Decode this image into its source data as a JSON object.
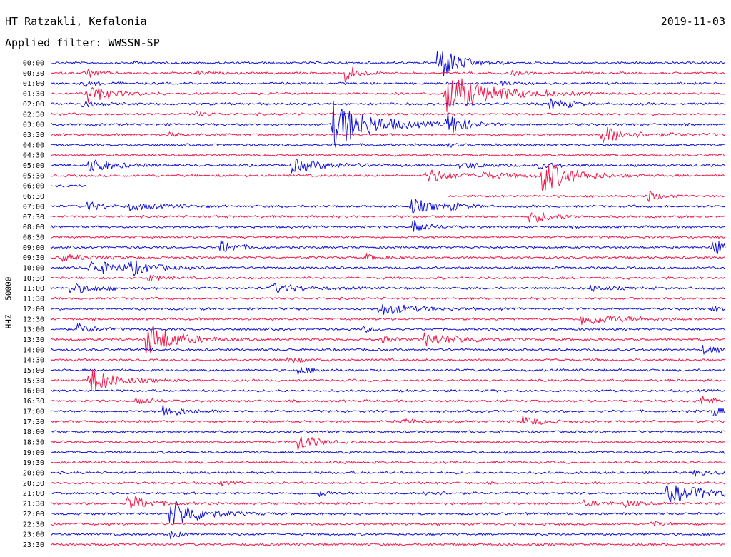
{
  "header": {
    "station": "HT Ratzakli, Kefalonia",
    "date": "2019-11-03",
    "filter": "Applied filter: WWSSN-SP"
  },
  "colors": {
    "line_a": "#1010d8",
    "line_b": "#f0184a"
  },
  "chart_data": {
    "type": "line",
    "title": "HT Ratzakli, Kefalonia",
    "ylabel": "HHZ - 50000",
    "xlabel": "",
    "grid": false,
    "legend": "none",
    "tick_labels": [
      "00:00",
      "00:30",
      "01:00",
      "01:30",
      "02:00",
      "02:30",
      "03:00",
      "03:30",
      "04:00",
      "04:30",
      "05:00",
      "05:30",
      "06:00",
      "06:30",
      "07:00",
      "07:30",
      "08:00",
      "08:30",
      "09:00",
      "09:30",
      "10:00",
      "10:30",
      "11:00",
      "11:30",
      "12:00",
      "12:30",
      "13:00",
      "13:30",
      "14:00",
      "14:30",
      "15:00",
      "15:30",
      "16:00",
      "16:30",
      "17:00",
      "17:30",
      "18:00",
      "18:30",
      "19:00",
      "19:30",
      "20:00",
      "20:30",
      "21:00",
      "21:30",
      "22:00",
      "22:30",
      "23:00",
      "23:30"
    ],
    "trace_span_min": 30,
    "base_noise": 1.4,
    "partial_traces": [
      {
        "row": 12,
        "start_min": 0,
        "end_min": 1.6
      },
      {
        "row": 13,
        "start_min": 17.7,
        "end_min": 30
      }
    ],
    "events": [
      {
        "row": 0,
        "t_min": 3.6,
        "amp": 1.5,
        "dur_min": 0.6
      },
      {
        "row": 0,
        "t_min": 17.2,
        "amp": 28,
        "dur_min": 0.8
      },
      {
        "row": 1,
        "t_min": 1.5,
        "amp": 9,
        "dur_min": 0.4
      },
      {
        "row": 1,
        "t_min": 6.5,
        "amp": 3,
        "dur_min": 0.4
      },
      {
        "row": 1,
        "t_min": 13.1,
        "amp": 14,
        "dur_min": 0.5
      },
      {
        "row": 1,
        "t_min": 20.5,
        "amp": 3,
        "dur_min": 0.4
      },
      {
        "row": 2,
        "t_min": 1.5,
        "amp": 5,
        "dur_min": 0.5
      },
      {
        "row": 2,
        "t_min": 20.0,
        "amp": 4,
        "dur_min": 0.4
      },
      {
        "row": 3,
        "t_min": 1.6,
        "amp": 14,
        "dur_min": 0.9
      },
      {
        "row": 3,
        "t_min": 17.5,
        "amp": 30,
        "dur_min": 1.8
      },
      {
        "row": 3,
        "t_min": 21.9,
        "amp": 2,
        "dur_min": 0.4
      },
      {
        "row": 4,
        "t_min": 1.4,
        "amp": 6,
        "dur_min": 0.5
      },
      {
        "row": 4,
        "t_min": 22.2,
        "amp": 8,
        "dur_min": 0.6
      },
      {
        "row": 4,
        "t_min": 23.0,
        "amp": 3,
        "dur_min": 0.3
      },
      {
        "row": 5,
        "t_min": 6.4,
        "amp": 4,
        "dur_min": 0.4
      },
      {
        "row": 6,
        "t_min": 12.5,
        "amp": 34,
        "dur_min": 1.6
      },
      {
        "row": 6,
        "t_min": 17.6,
        "amp": 18,
        "dur_min": 0.7
      },
      {
        "row": 7,
        "t_min": 5.3,
        "amp": 3,
        "dur_min": 0.5
      },
      {
        "row": 7,
        "t_min": 24.5,
        "amp": 12,
        "dur_min": 1.2
      },
      {
        "row": 8,
        "t_min": 17.6,
        "amp": 3,
        "dur_min": 0.4
      },
      {
        "row": 10,
        "t_min": 1.7,
        "amp": 10,
        "dur_min": 1.0
      },
      {
        "row": 10,
        "t_min": 10.7,
        "amp": 9,
        "dur_min": 1.6
      },
      {
        "row": 10,
        "t_min": 18.2,
        "amp": 5,
        "dur_min": 1.0
      },
      {
        "row": 10,
        "t_min": 21.7,
        "amp": 4,
        "dur_min": 0.8
      },
      {
        "row": 11,
        "t_min": 16.7,
        "amp": 11,
        "dur_min": 1.0
      },
      {
        "row": 11,
        "t_min": 19.0,
        "amp": 5,
        "dur_min": 1.5
      },
      {
        "row": 11,
        "t_min": 21.8,
        "amp": 24,
        "dur_min": 1.2
      },
      {
        "row": 13,
        "t_min": 26.5,
        "amp": 9,
        "dur_min": 0.5
      },
      {
        "row": 14,
        "t_min": 1.6,
        "amp": 7,
        "dur_min": 0.6
      },
      {
        "row": 14,
        "t_min": 3.5,
        "amp": 5,
        "dur_min": 1.3
      },
      {
        "row": 14,
        "t_min": 16.0,
        "amp": 11,
        "dur_min": 1.0
      },
      {
        "row": 14,
        "t_min": 17.8,
        "amp": 4,
        "dur_min": 0.5
      },
      {
        "row": 15,
        "t_min": 21.3,
        "amp": 11,
        "dur_min": 0.8
      },
      {
        "row": 16,
        "t_min": 16.1,
        "amp": 10,
        "dur_min": 0.6
      },
      {
        "row": 18,
        "t_min": 7.5,
        "amp": 12,
        "dur_min": 0.6
      },
      {
        "row": 18,
        "t_min": 29.4,
        "amp": 9,
        "dur_min": 1.2
      },
      {
        "row": 19,
        "t_min": 0.5,
        "amp": 4,
        "dur_min": 1.4
      },
      {
        "row": 19,
        "t_min": 14.0,
        "amp": 5,
        "dur_min": 0.6
      },
      {
        "row": 20,
        "t_min": 1.7,
        "amp": 11,
        "dur_min": 1.3
      },
      {
        "row": 20,
        "t_min": 3.5,
        "amp": 9,
        "dur_min": 0.9
      },
      {
        "row": 21,
        "t_min": 4.3,
        "amp": 5,
        "dur_min": 0.6
      },
      {
        "row": 22,
        "t_min": 0.8,
        "amp": 8,
        "dur_min": 1.0
      },
      {
        "row": 22,
        "t_min": 9.8,
        "amp": 7,
        "dur_min": 1.2
      },
      {
        "row": 22,
        "t_min": 24.0,
        "amp": 4,
        "dur_min": 0.8
      },
      {
        "row": 24,
        "t_min": 14.6,
        "amp": 9,
        "dur_min": 1.4
      },
      {
        "row": 24,
        "t_min": 29.4,
        "amp": 4,
        "dur_min": 0.5
      },
      {
        "row": 25,
        "t_min": 23.6,
        "amp": 9,
        "dur_min": 1.6
      },
      {
        "row": 26,
        "t_min": 1.2,
        "amp": 7,
        "dur_min": 0.7
      },
      {
        "row": 26,
        "t_min": 13.9,
        "amp": 4,
        "dur_min": 0.4
      },
      {
        "row": 27,
        "t_min": 4.2,
        "amp": 26,
        "dur_min": 1.2
      },
      {
        "row": 27,
        "t_min": 16.6,
        "amp": 9,
        "dur_min": 1.6
      },
      {
        "row": 27,
        "t_min": 14.7,
        "amp": 5,
        "dur_min": 0.5
      },
      {
        "row": 28,
        "t_min": 29.0,
        "amp": 6,
        "dur_min": 0.6
      },
      {
        "row": 29,
        "t_min": 10.5,
        "amp": 5,
        "dur_min": 0.6
      },
      {
        "row": 30,
        "t_min": 11.0,
        "amp": 6,
        "dur_min": 0.6
      },
      {
        "row": 31,
        "t_min": 1.7,
        "amp": 20,
        "dur_min": 1.0
      },
      {
        "row": 33,
        "t_min": 3.8,
        "amp": 6,
        "dur_min": 0.6
      },
      {
        "row": 33,
        "t_min": 28.9,
        "amp": 7,
        "dur_min": 0.6
      },
      {
        "row": 34,
        "t_min": 5.0,
        "amp": 9,
        "dur_min": 0.9
      },
      {
        "row": 34,
        "t_min": 29.4,
        "amp": 7,
        "dur_min": 0.5
      },
      {
        "row": 35,
        "t_min": 15.6,
        "amp": 6,
        "dur_min": 0.5
      },
      {
        "row": 35,
        "t_min": 21.0,
        "amp": 8,
        "dur_min": 0.7
      },
      {
        "row": 37,
        "t_min": 11.0,
        "amp": 13,
        "dur_min": 0.7
      },
      {
        "row": 40,
        "t_min": 28.6,
        "amp": 4,
        "dur_min": 0.8
      },
      {
        "row": 41,
        "t_min": 7.5,
        "amp": 3,
        "dur_min": 0.4
      },
      {
        "row": 42,
        "t_min": 11.9,
        "amp": 5,
        "dur_min": 0.4
      },
      {
        "row": 42,
        "t_min": 16.6,
        "amp": 5,
        "dur_min": 0.6
      },
      {
        "row": 42,
        "t_min": 27.4,
        "amp": 12,
        "dur_min": 2.0
      },
      {
        "row": 43,
        "t_min": 3.4,
        "amp": 12,
        "dur_min": 0.9
      },
      {
        "row": 43,
        "t_min": 23.7,
        "amp": 4,
        "dur_min": 0.8
      },
      {
        "row": 43,
        "t_min": 25.5,
        "amp": 5,
        "dur_min": 0.5
      },
      {
        "row": 44,
        "t_min": 5.3,
        "amp": 22,
        "dur_min": 1.2
      },
      {
        "row": 45,
        "t_min": 26.6,
        "amp": 5,
        "dur_min": 0.5
      },
      {
        "row": 46,
        "t_min": 5.3,
        "amp": 6,
        "dur_min": 0.5
      }
    ]
  }
}
